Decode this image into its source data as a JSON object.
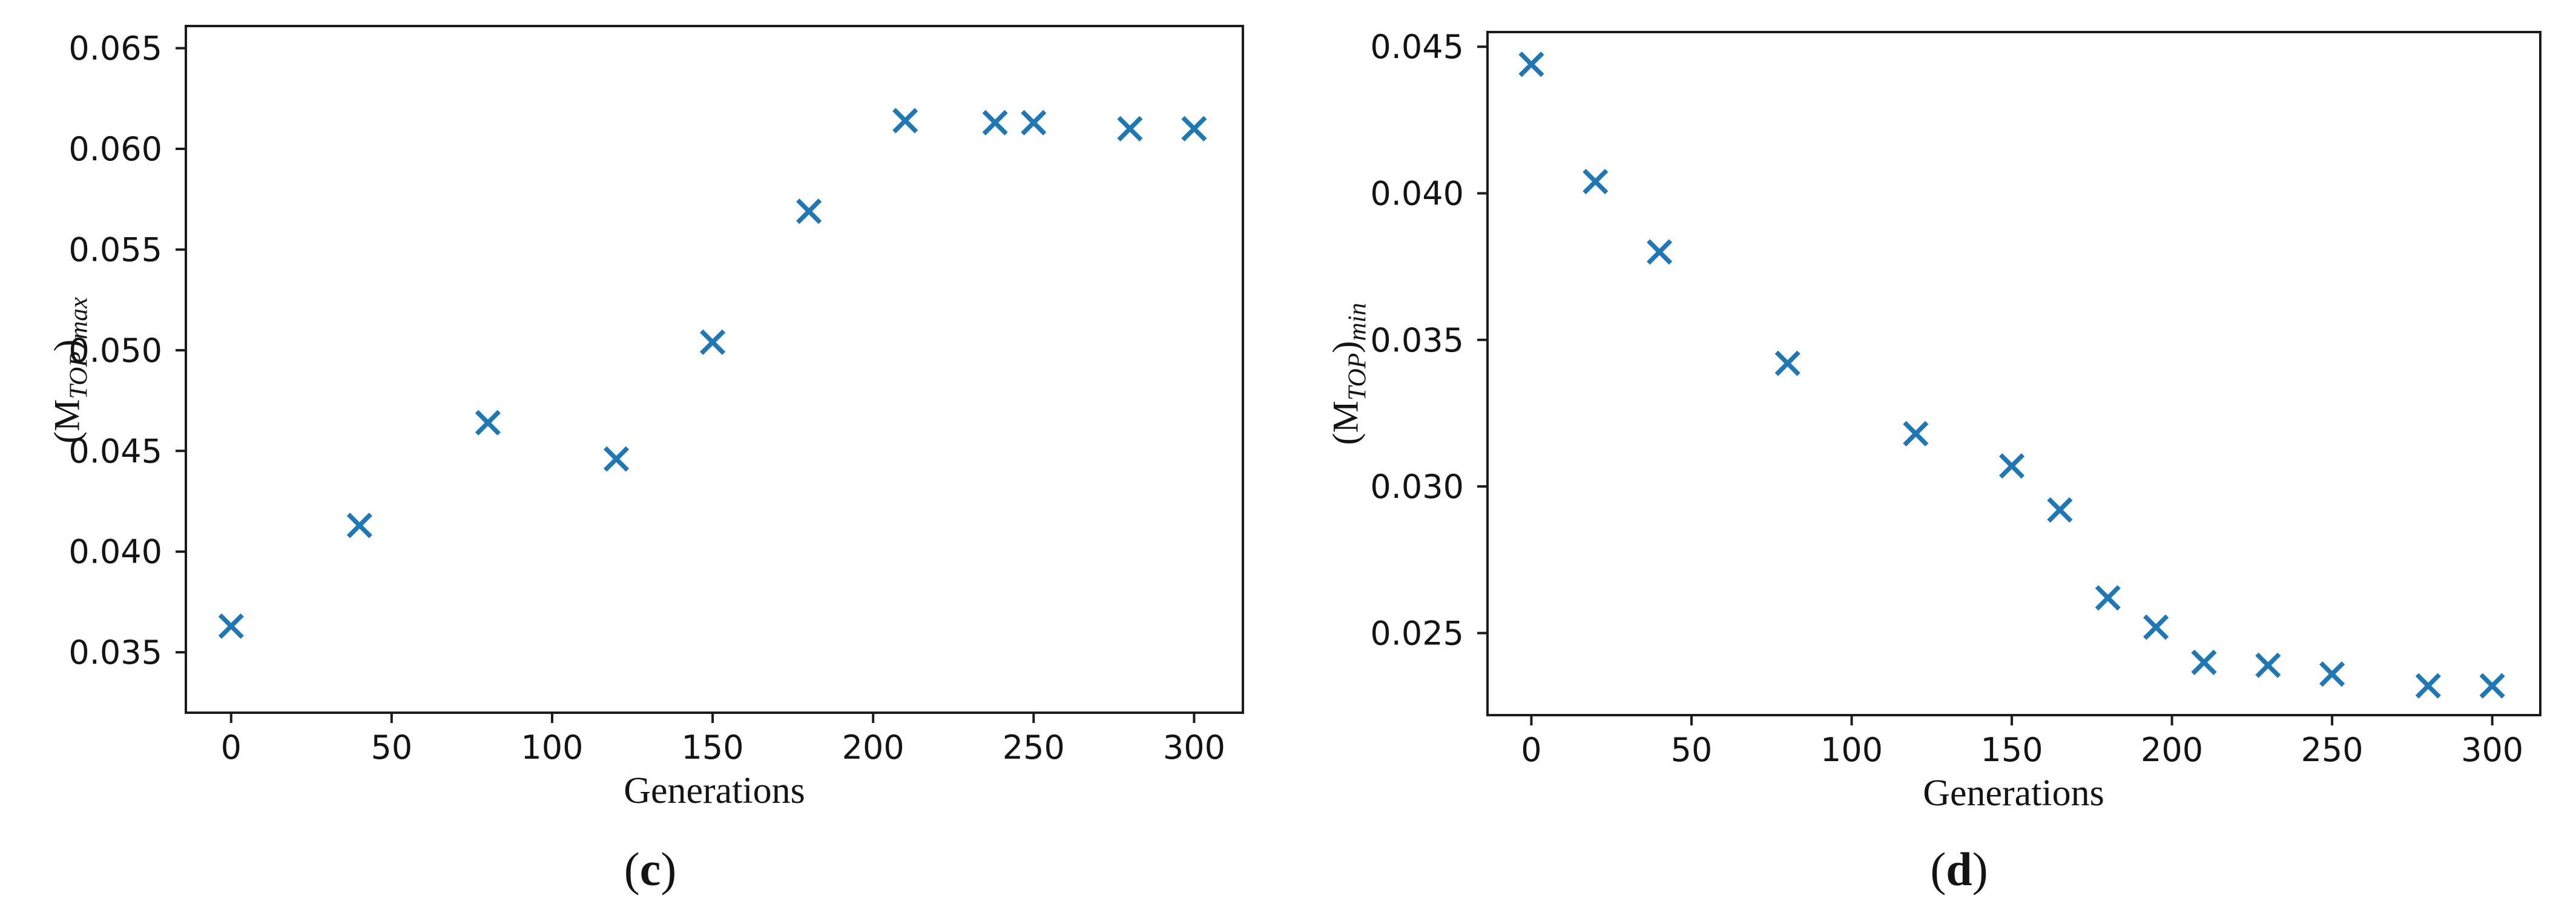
{
  "figure": {
    "background": "#ffffff",
    "axis_color": "#1c1c1c",
    "text_color": "#141414"
  },
  "chart_data": [
    {
      "type": "scatter",
      "panel": "c",
      "caption": {
        "open": "(",
        "letter": "c",
        "close": ")"
      },
      "xlabel": "Generations",
      "ylabel": {
        "open": "(M",
        "sub": "TOP",
        "close": ")",
        "subscript": "max"
      },
      "marker": "x",
      "marker_color": "#1f77b4",
      "marker_size": 18.4,
      "marker_stroke": 7.5,
      "x": [
        0,
        40,
        80,
        120,
        150,
        180,
        210,
        238,
        250,
        280,
        300
      ],
      "y": [
        0.0363,
        0.0413,
        0.0464,
        0.0446,
        0.0504,
        0.0569,
        0.0614,
        0.0613,
        0.0613,
        0.061,
        0.061
      ],
      "xlim": [
        -14.1,
        315.2
      ],
      "ylim": [
        0.032,
        0.0661
      ],
      "xticks": [
        0,
        50,
        100,
        150,
        200,
        250,
        300
      ],
      "xtick_labels": [
        "0",
        "50",
        "100",
        "150",
        "200",
        "250",
        "300"
      ],
      "yticks": [
        0.035,
        0.04,
        0.045,
        0.05,
        0.055,
        0.06,
        0.065
      ],
      "ytick_labels": [
        "0.035",
        "0.040",
        "0.045",
        "0.050",
        "0.055",
        "0.060",
        "0.065"
      ],
      "grid": false,
      "legend": null
    },
    {
      "type": "scatter",
      "panel": "d",
      "caption": {
        "open": "(",
        "letter": "d",
        "close": ")"
      },
      "xlabel": "Generations",
      "ylabel": {
        "open": "(M",
        "sub": "TOP",
        "close": ")",
        "subscript": "min"
      },
      "marker": "x",
      "marker_color": "#1f77b4",
      "marker_size": 18.4,
      "marker_stroke": 7.5,
      "x": [
        0,
        20,
        40,
        80,
        120,
        150,
        165,
        180,
        195,
        210,
        230,
        250,
        280,
        300
      ],
      "y": [
        0.0444,
        0.0404,
        0.038,
        0.0342,
        0.0318,
        0.0307,
        0.0292,
        0.0262,
        0.0252,
        0.024,
        0.0239,
        0.0236,
        0.0232,
        0.0232
      ],
      "xlim": [
        -13.7,
        315.0
      ],
      "ylim": [
        0.0222,
        0.0455
      ],
      "xticks": [
        0,
        50,
        100,
        150,
        200,
        250,
        300
      ],
      "xtick_labels": [
        "0",
        "50",
        "100",
        "150",
        "200",
        "250",
        "300"
      ],
      "yticks": [
        0.025,
        0.03,
        0.035,
        0.04,
        0.045
      ],
      "ytick_labels": [
        "0.025",
        "0.030",
        "0.035",
        "0.040",
        "0.045"
      ],
      "grid": false,
      "legend": null
    }
  ]
}
